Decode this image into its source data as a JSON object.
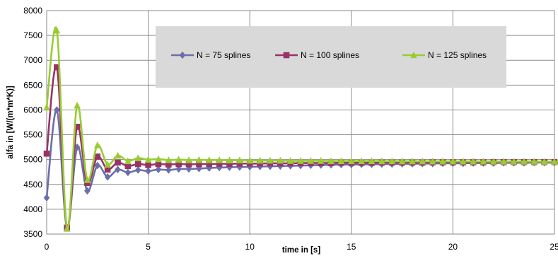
{
  "chart_data": {
    "type": "line",
    "title": "",
    "xlabel": "time in [s]",
    "ylabel": "alfa in [W/(m*m*K)]",
    "xlim": [
      0,
      25
    ],
    "ylim": [
      3500,
      8000
    ],
    "xticks": [
      0,
      5,
      10,
      15,
      20,
      25
    ],
    "yticks": [
      3500,
      4000,
      4500,
      5000,
      5500,
      6000,
      6500,
      7000,
      7500,
      8000
    ],
    "grid": true,
    "legend_position": "top-right",
    "x_start": 0,
    "x_step": 0.5,
    "series": [
      {
        "name": "N = 75 splines",
        "color": "#6b6fa8",
        "marker": "diamond",
        "values": [
          4230,
          6000,
          3620,
          5250,
          4370,
          4880,
          4650,
          4800,
          4740,
          4790,
          4770,
          4800,
          4790,
          4810,
          4810,
          4820,
          4830,
          4840,
          4845,
          4850,
          4855,
          4860,
          4865,
          4870,
          4875,
          4880,
          4885,
          4890,
          4895,
          4900,
          4900,
          4905,
          4905,
          4910,
          4910,
          4915,
          4915,
          4920,
          4920,
          4925,
          4925,
          4925,
          4930,
          4930,
          4930,
          4935,
          4935,
          4935,
          4940,
          4940,
          4940,
          4945,
          4945,
          4945,
          4950
        ]
      },
      {
        "name": "N = 100 splines",
        "color": "#993366",
        "marker": "square",
        "values": [
          5120,
          6860,
          3630,
          5660,
          4530,
          5060,
          4800,
          4940,
          4870,
          4910,
          4890,
          4910,
          4900,
          4910,
          4905,
          4910,
          4910,
          4915,
          4915,
          4920,
          4920,
          4920,
          4925,
          4925,
          4925,
          4930,
          4930,
          4930,
          4930,
          4935,
          4935,
          4935,
          4935,
          4940,
          4940,
          4940,
          4940,
          4940,
          4945,
          4945,
          4945,
          4945,
          4945,
          4945,
          4950,
          4950,
          4950,
          4950,
          4950,
          4950,
          4950,
          4950,
          4950,
          4950,
          4955
        ]
      },
      {
        "name": "N = 125 splines",
        "color": "#99cc33",
        "marker": "triangle",
        "values": [
          6050,
          7600,
          3610,
          6090,
          4590,
          5290,
          4900,
          5080,
          4970,
          5030,
          5000,
          5010,
          4990,
          5000,
          4990,
          4995,
          4990,
          4990,
          4985,
          4985,
          4980,
          4980,
          4980,
          4980,
          4975,
          4975,
          4975,
          4975,
          4970,
          4970,
          4970,
          4970,
          4970,
          4968,
          4968,
          4966,
          4966,
          4966,
          4964,
          4964,
          4964,
          4962,
          4962,
          4962,
          4960,
          4960,
          4960,
          4960,
          4960,
          4958,
          4958,
          4958,
          4958,
          4956,
          4956
        ]
      }
    ]
  }
}
